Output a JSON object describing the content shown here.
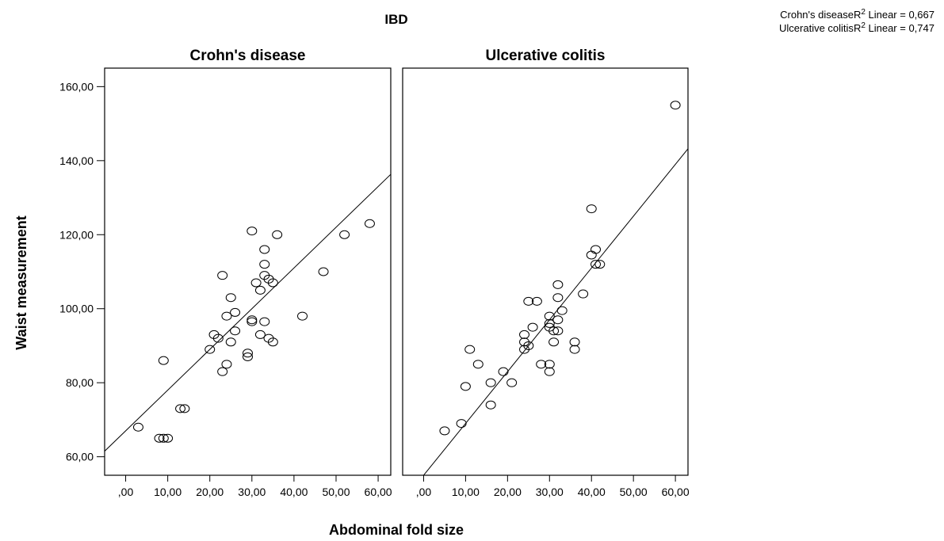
{
  "chart_data": {
    "type": "scatter",
    "title": "IBD",
    "xlabel": "Abdominal fold size",
    "ylabel": "Waist measurement",
    "xlim": [
      -5,
      63
    ],
    "ylim": [
      55,
      165
    ],
    "xticks": [
      0,
      10,
      20,
      30,
      40,
      50,
      60
    ],
    "xtick_labels": [
      ",00",
      "10,00",
      "20,00",
      "30,00",
      "40,00",
      "50,00",
      "60,00"
    ],
    "yticks": [
      60,
      80,
      100,
      120,
      140,
      160
    ],
    "ytick_labels": [
      "60,00",
      "80,00",
      "100,00",
      "120,00",
      "140,00",
      "160,00"
    ],
    "legend": {
      "position": "top-right",
      "entries": [
        {
          "group": "Crohn's disease",
          "r2_label": "R",
          "sup": "2",
          "text": " Linear = 0,667"
        },
        {
          "group": "Ulcerative colitis",
          "r2_label": "R",
          "sup": "2",
          "text": " Linear = 0,747"
        }
      ]
    },
    "panels": [
      {
        "name": "Crohn's disease",
        "fit": {
          "slope": 1.1,
          "intercept": 67.0
        },
        "points": [
          [
            3,
            68
          ],
          [
            8,
            65
          ],
          [
            9,
            65
          ],
          [
            10,
            65
          ],
          [
            9,
            86
          ],
          [
            13,
            73
          ],
          [
            14,
            73
          ],
          [
            20,
            89
          ],
          [
            21,
            93
          ],
          [
            22,
            92
          ],
          [
            23,
            109
          ],
          [
            23,
            83
          ],
          [
            24,
            98
          ],
          [
            24,
            85
          ],
          [
            25,
            103
          ],
          [
            25,
            91
          ],
          [
            26,
            99
          ],
          [
            26,
            94
          ],
          [
            29,
            88
          ],
          [
            29,
            87
          ],
          [
            30,
            121
          ],
          [
            30,
            97
          ],
          [
            30,
            96.5
          ],
          [
            31,
            107
          ],
          [
            32,
            105
          ],
          [
            32,
            93
          ],
          [
            33,
            116
          ],
          [
            33,
            112
          ],
          [
            33,
            109
          ],
          [
            33,
            96.5
          ],
          [
            34,
            108
          ],
          [
            34,
            92
          ],
          [
            35,
            107
          ],
          [
            35,
            91
          ],
          [
            36,
            120
          ],
          [
            42,
            98
          ],
          [
            47,
            110
          ],
          [
            52,
            120
          ],
          [
            58,
            123
          ]
        ]
      },
      {
        "name": "Ulcerative colitis",
        "fit": {
          "slope": 1.4,
          "intercept": 55.0
        },
        "points": [
          [
            5,
            67
          ],
          [
            9,
            69
          ],
          [
            10,
            79
          ],
          [
            11,
            89
          ],
          [
            13,
            85
          ],
          [
            16,
            80
          ],
          [
            16,
            74
          ],
          [
            19,
            83
          ],
          [
            21,
            80
          ],
          [
            24,
            93
          ],
          [
            24,
            91
          ],
          [
            24,
            89
          ],
          [
            25,
            102
          ],
          [
            25,
            90
          ],
          [
            26,
            95
          ],
          [
            27,
            102
          ],
          [
            28,
            85
          ],
          [
            30,
            98
          ],
          [
            30,
            96
          ],
          [
            30,
            95
          ],
          [
            30,
            85
          ],
          [
            30,
            83
          ],
          [
            31,
            94
          ],
          [
            31,
            91
          ],
          [
            32,
            106.5
          ],
          [
            32,
            103
          ],
          [
            32,
            97
          ],
          [
            32,
            94
          ],
          [
            33,
            99.5
          ],
          [
            36,
            91
          ],
          [
            36,
            89
          ],
          [
            38,
            104
          ],
          [
            40,
            127
          ],
          [
            40,
            114.5
          ],
          [
            41,
            116
          ],
          [
            41,
            112
          ],
          [
            42,
            112
          ],
          [
            60,
            155
          ]
        ]
      }
    ]
  }
}
